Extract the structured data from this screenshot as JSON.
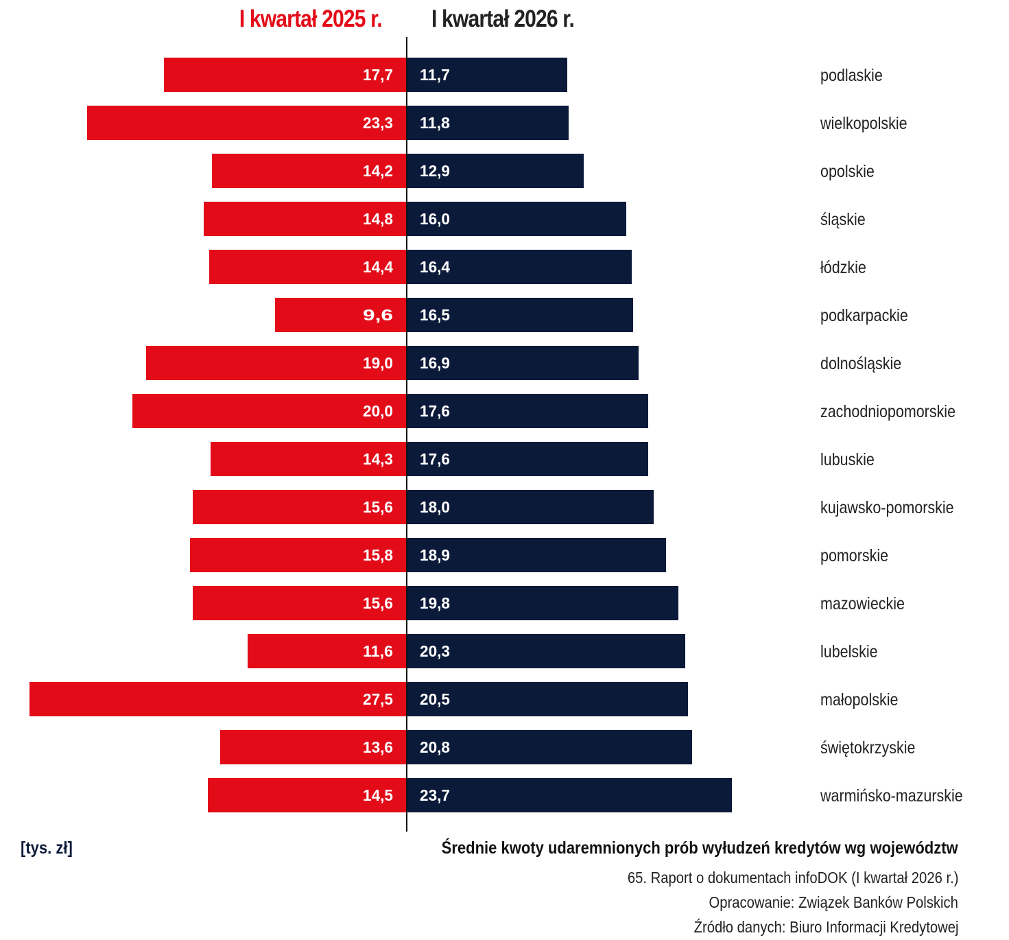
{
  "colors": {
    "left_series": "#e30b18",
    "right_series": "#0c1a3a",
    "unit_text": "#0c1a3a"
  },
  "footer": {
    "unit": "[tys. zł]",
    "title": "Średnie kwoty udaremnionych prób wyłudzeń kredytów wg województw",
    "source_lines": [
      "65. Raport o dokumentach infoDOK (I kwartał 2026 r.)",
      "Opracowanie: Związek Banków Polskich",
      "Źródło danych: Biuro Informacji Kredytowej"
    ]
  },
  "chart_data": {
    "type": "bar",
    "orientation": "horizontal",
    "layout": "back-to-back",
    "categories": [
      "podlaskie",
      "wielkopolskie",
      "opolskie",
      "śląskie",
      "łódzkie",
      "podkarpackie",
      "dolnośląskie",
      "zachodniopomorskie",
      "lubuskie",
      "kujawsko-pomorskie",
      "pomorskie",
      "mazowieckie",
      "lubelskie",
      "małopolskie",
      "świętokrzyskie",
      "warmińsko-mazurskie"
    ],
    "series": [
      {
        "name": "I kwartał 2025 r.",
        "side": "left",
        "values": [
          17.7,
          23.3,
          14.2,
          14.8,
          14.4,
          9.6,
          19.0,
          20.0,
          14.3,
          15.6,
          15.8,
          15.6,
          11.6,
          27.5,
          13.6,
          14.5
        ],
        "labels": [
          "17,7",
          "23,3",
          "14,2",
          "14,8",
          "14,4",
          "9,6",
          "19,0",
          "20,0",
          "14,3",
          "15,6",
          "15,8",
          "15,6",
          "11,6",
          "27,5",
          "13,6",
          "14,5"
        ]
      },
      {
        "name": "I kwartał 2026 r.",
        "side": "right",
        "values": [
          11.7,
          11.8,
          12.9,
          16.0,
          16.4,
          16.5,
          16.9,
          17.6,
          17.6,
          18.0,
          18.9,
          19.8,
          20.3,
          20.5,
          20.8,
          23.7
        ],
        "labels": [
          "11,7",
          "11,8",
          "12,9",
          "16,0",
          "16,4",
          "16,5",
          "16,9",
          "17,6",
          "17,6",
          "18,0",
          "18,9",
          "19,8",
          "20,3",
          "20,5",
          "20,8",
          "23,7"
        ]
      }
    ],
    "unit": "[tys. zł]",
    "sorted_by": "I kwartał 2026 r. ascending",
    "grid": false
  }
}
